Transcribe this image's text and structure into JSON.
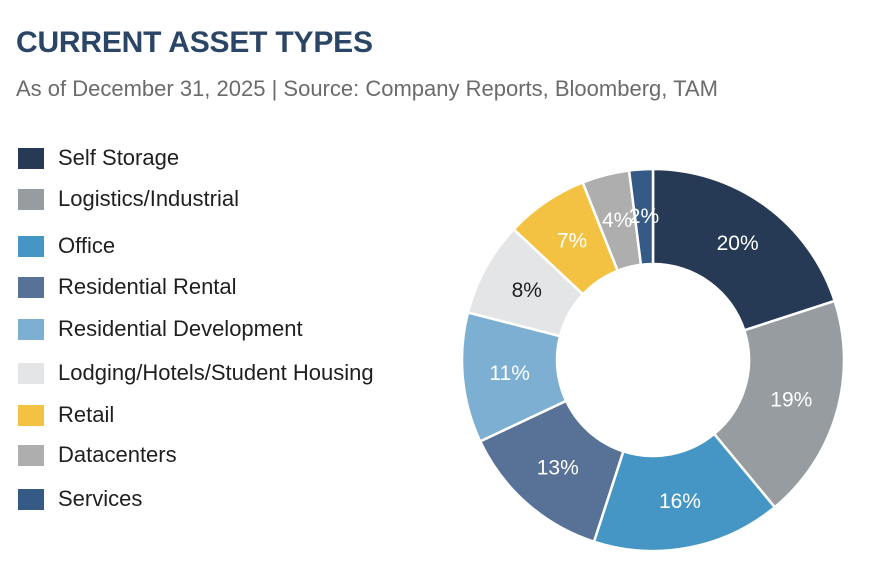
{
  "title": "CURRENT ASSET TYPES",
  "subtitle": "As of December 31, 2025 | Source: Company Reports, Bloomberg, TAM",
  "chart_data": {
    "type": "pie",
    "variant": "donut",
    "title": "CURRENT ASSET TYPES",
    "subtitle": "As of December 31, 2025 | Source: Company Reports, Bloomberg, TAM",
    "legend_position": "left",
    "slices": [
      {
        "name": "Self Storage",
        "value": 20,
        "label": "20%",
        "color": "#263a55",
        "text_color": "#ffffff"
      },
      {
        "name": "Logistics/Industrial",
        "value": 19,
        "label": "19%",
        "color": "#979ca1",
        "text_color": "#ffffff"
      },
      {
        "name": "Office",
        "value": 16,
        "label": "16%",
        "color": "#4596c4",
        "text_color": "#ffffff"
      },
      {
        "name": "Residential Rental",
        "value": 13,
        "label": "13%",
        "color": "#587196",
        "text_color": "#ffffff"
      },
      {
        "name": "Residential Development",
        "value": 11,
        "label": "11%",
        "color": "#7dafd3",
        "text_color": "#ffffff"
      },
      {
        "name": "Lodging/Hotels/Student Housing",
        "value": 8,
        "label": "8%",
        "color": "#e4e5e7",
        "text_color": "#1f1f1f"
      },
      {
        "name": "Retail",
        "value": 7,
        "label": "7%",
        "color": "#f4c242",
        "text_color": "#ffffff"
      },
      {
        "name": "Datacenters",
        "value": 4,
        "label": "4%",
        "color": "#aeaeae",
        "text_color": "#ffffff"
      },
      {
        "name": "Services",
        "value": 2,
        "label": "2%",
        "color": "#345a85",
        "text_color": "#ffffff"
      }
    ]
  }
}
